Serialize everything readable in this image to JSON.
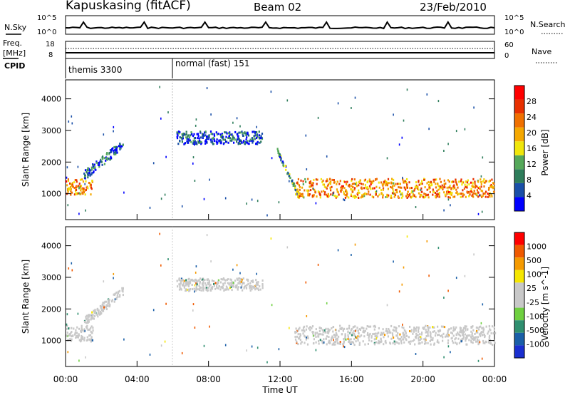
{
  "header": {
    "station": "Kapuskasing (fitACF)",
    "beam": "Beam 02",
    "date": "23/Feb/2010"
  },
  "panels": {
    "noise": {
      "left_label": "N.Sky",
      "right_label": "N.Search",
      "left_ticks": [
        "10^5",
        "10^0"
      ],
      "right_ticks": [
        "10^5",
        "10^0"
      ]
    },
    "freq": {
      "left_label_1": "Freq.",
      "left_label_2": "[MHz]",
      "right_label": "Nave",
      "left_ticks": [
        "18",
        "8"
      ],
      "right_ticks": [
        "60",
        "0"
      ]
    },
    "cpid": {
      "label": "CPID",
      "modes": [
        "themis 3300",
        "normal (fast) 151"
      ]
    }
  },
  "colors": {
    "power_scale": [
      "#0000ff",
      "#1a4fa8",
      "#2e7d5b",
      "#55a85a",
      "#f0e60a",
      "#f5a800",
      "#f07000",
      "#e83000",
      "#ff0000"
    ],
    "velocity_scale": [
      "#1a2fd0",
      "#1a5fa8",
      "#2f8f6f",
      "#6fd040",
      "#c8c8c8",
      "#c8c8c8",
      "#f5e600",
      "#f59a00",
      "#f05a00",
      "#ff0000"
    ],
    "ground_scatter": "#c8c8c8"
  },
  "chart_data": [
    {
      "type": "heatmap",
      "title": "",
      "xlabel": "Time UT",
      "ylabel": "Slant Range [km]",
      "xlim": [
        0,
        24
      ],
      "ylim": [
        180,
        4600
      ],
      "x_tick_labels": [
        "00:00",
        "04:00",
        "08:00",
        "12:00",
        "16:00",
        "20:00",
        "00:00"
      ],
      "y_tick_labels": [
        "1000",
        "2000",
        "3000",
        "4000"
      ],
      "colorbar_label": "Power [dB]",
      "colorbar_ticks": [
        "4",
        "8",
        "12",
        "16",
        "20",
        "24",
        "28"
      ],
      "colorbar_range": [
        0,
        30
      ],
      "features": [
        {
          "name": "dayside band",
          "t": [
            0,
            1.5
          ],
          "range": [
            1000,
            1500
          ],
          "power": 20
        },
        {
          "name": "rising arc",
          "t": [
            1.0,
            3.2
          ],
          "range": [
            1600,
            2600
          ],
          "power": 6
        },
        {
          "name": "night echoes",
          "t": [
            6.2,
            11.0
          ],
          "range": [
            2600,
            3000
          ],
          "power": 5
        },
        {
          "name": "descending arc",
          "t": [
            11.8,
            13.0
          ],
          "range": [
            1000,
            2400
          ],
          "power": 10
        },
        {
          "name": "main band",
          "t": [
            12.8,
            24
          ],
          "range": [
            900,
            1500
          ],
          "power": 20
        }
      ]
    },
    {
      "type": "heatmap",
      "title": "",
      "xlabel": "Time UT",
      "ylabel": "Slant Range [km]",
      "xlim": [
        0,
        24
      ],
      "ylim": [
        180,
        4600
      ],
      "x_tick_labels": [
        "00:00",
        "04:00",
        "08:00",
        "12:00",
        "16:00",
        "20:00",
        "00:00"
      ],
      "y_tick_labels": [
        "1000",
        "2000",
        "3000",
        "4000"
      ],
      "colorbar_label": "Velocity [m s^-1]",
      "colorbar_ticks": [
        "1000",
        "500",
        "100",
        "25",
        "-25",
        "-100",
        "-500",
        "-1000"
      ],
      "colorbar_range": [
        -1000,
        1000
      ],
      "note_ground_scatter_color": "grey",
      "features": [
        {
          "name": "dayside band",
          "t": [
            0,
            1.5
          ],
          "range": [
            1000,
            1500
          ],
          "velocity": 0
        },
        {
          "name": "rising arc",
          "t": [
            1.0,
            3.2
          ],
          "range": [
            1600,
            2600
          ],
          "velocity": 0
        },
        {
          "name": "night echoes",
          "t": [
            6.2,
            11.0
          ],
          "range": [
            2600,
            3000
          ],
          "velocity": 0
        },
        {
          "name": "main band",
          "t": [
            12.8,
            24
          ],
          "range": [
            900,
            1500
          ],
          "velocity": 0
        }
      ]
    }
  ]
}
